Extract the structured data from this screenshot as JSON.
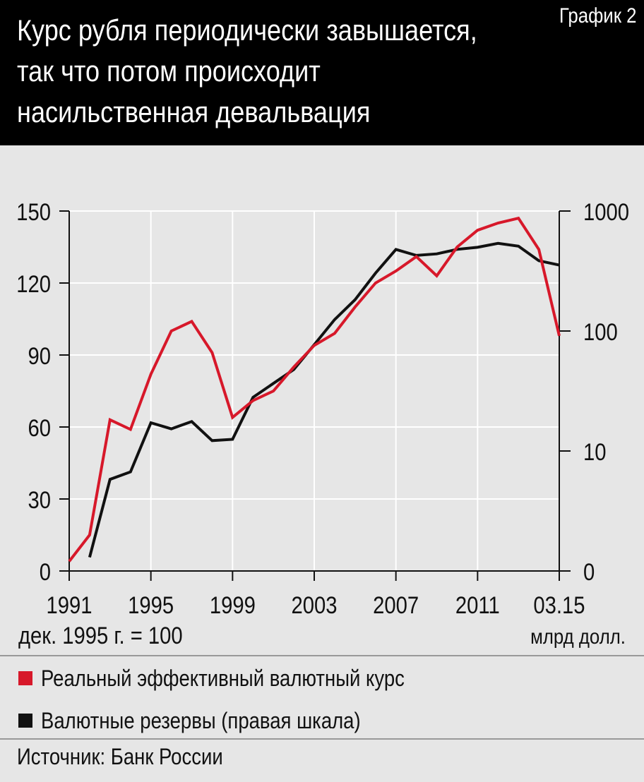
{
  "header": {
    "title": "Курс рубля периодически завышается, так что потом происходит насильственная девальвация",
    "label": "График 2"
  },
  "chart_data": {
    "type": "line",
    "x": [
      "1991",
      "1992",
      "1993",
      "1994",
      "1995",
      "1996",
      "1997",
      "1998",
      "1999",
      "2000",
      "2001",
      "2002",
      "2003",
      "2004",
      "2005",
      "2006",
      "2007",
      "2008",
      "2009",
      "2010",
      "2011",
      "2012",
      "2013",
      "2014",
      "03.15"
    ],
    "x_tick_labels": [
      "1991",
      "1995",
      "1999",
      "2003",
      "2007",
      "2011",
      "03.15"
    ],
    "left_axis": {
      "ticks": [
        0,
        30,
        60,
        90,
        120,
        150
      ],
      "ylim": [
        0,
        150
      ],
      "unit_label": "дек. 1995 г. = 100"
    },
    "right_axis": {
      "scale": "log",
      "ticks": [
        1,
        10,
        100,
        1000
      ],
      "tick_labels": [
        "0",
        "10",
        "100",
        "1000"
      ],
      "ylim": [
        1,
        1000
      ],
      "unit_label": "млрд долл."
    },
    "grid": true,
    "series": [
      {
        "name": "Реальный эффективный валютный курс",
        "axis": "left",
        "color": "#d7182a",
        "values": [
          4,
          15,
          63,
          59,
          82,
          100,
          104,
          91,
          64,
          71,
          75,
          85,
          94,
          99,
          110,
          120,
          125,
          131,
          123,
          135,
          142,
          145,
          147,
          134,
          98
        ]
      },
      {
        "name": "Валютные резервы (правая шкала)",
        "axis": "right",
        "color": "#111111",
        "values": [
          null,
          1.3,
          5.8,
          6.7,
          17.2,
          15.3,
          17.6,
          12.2,
          12.5,
          28,
          36.6,
          47.8,
          76.9,
          124.5,
          182.2,
          303.7,
          478.8,
          426.3,
          439.5,
          479.4,
          498.6,
          537.6,
          509.6,
          385.5,
          354.4
        ]
      }
    ]
  },
  "legend": [
    {
      "label": "Реальный эффективный валютный курс",
      "color": "#d7182a"
    },
    {
      "label": "Валютные резервы (правая шкала)",
      "color": "#111111"
    }
  ],
  "footer": {
    "source": "Источник: Банк России"
  }
}
